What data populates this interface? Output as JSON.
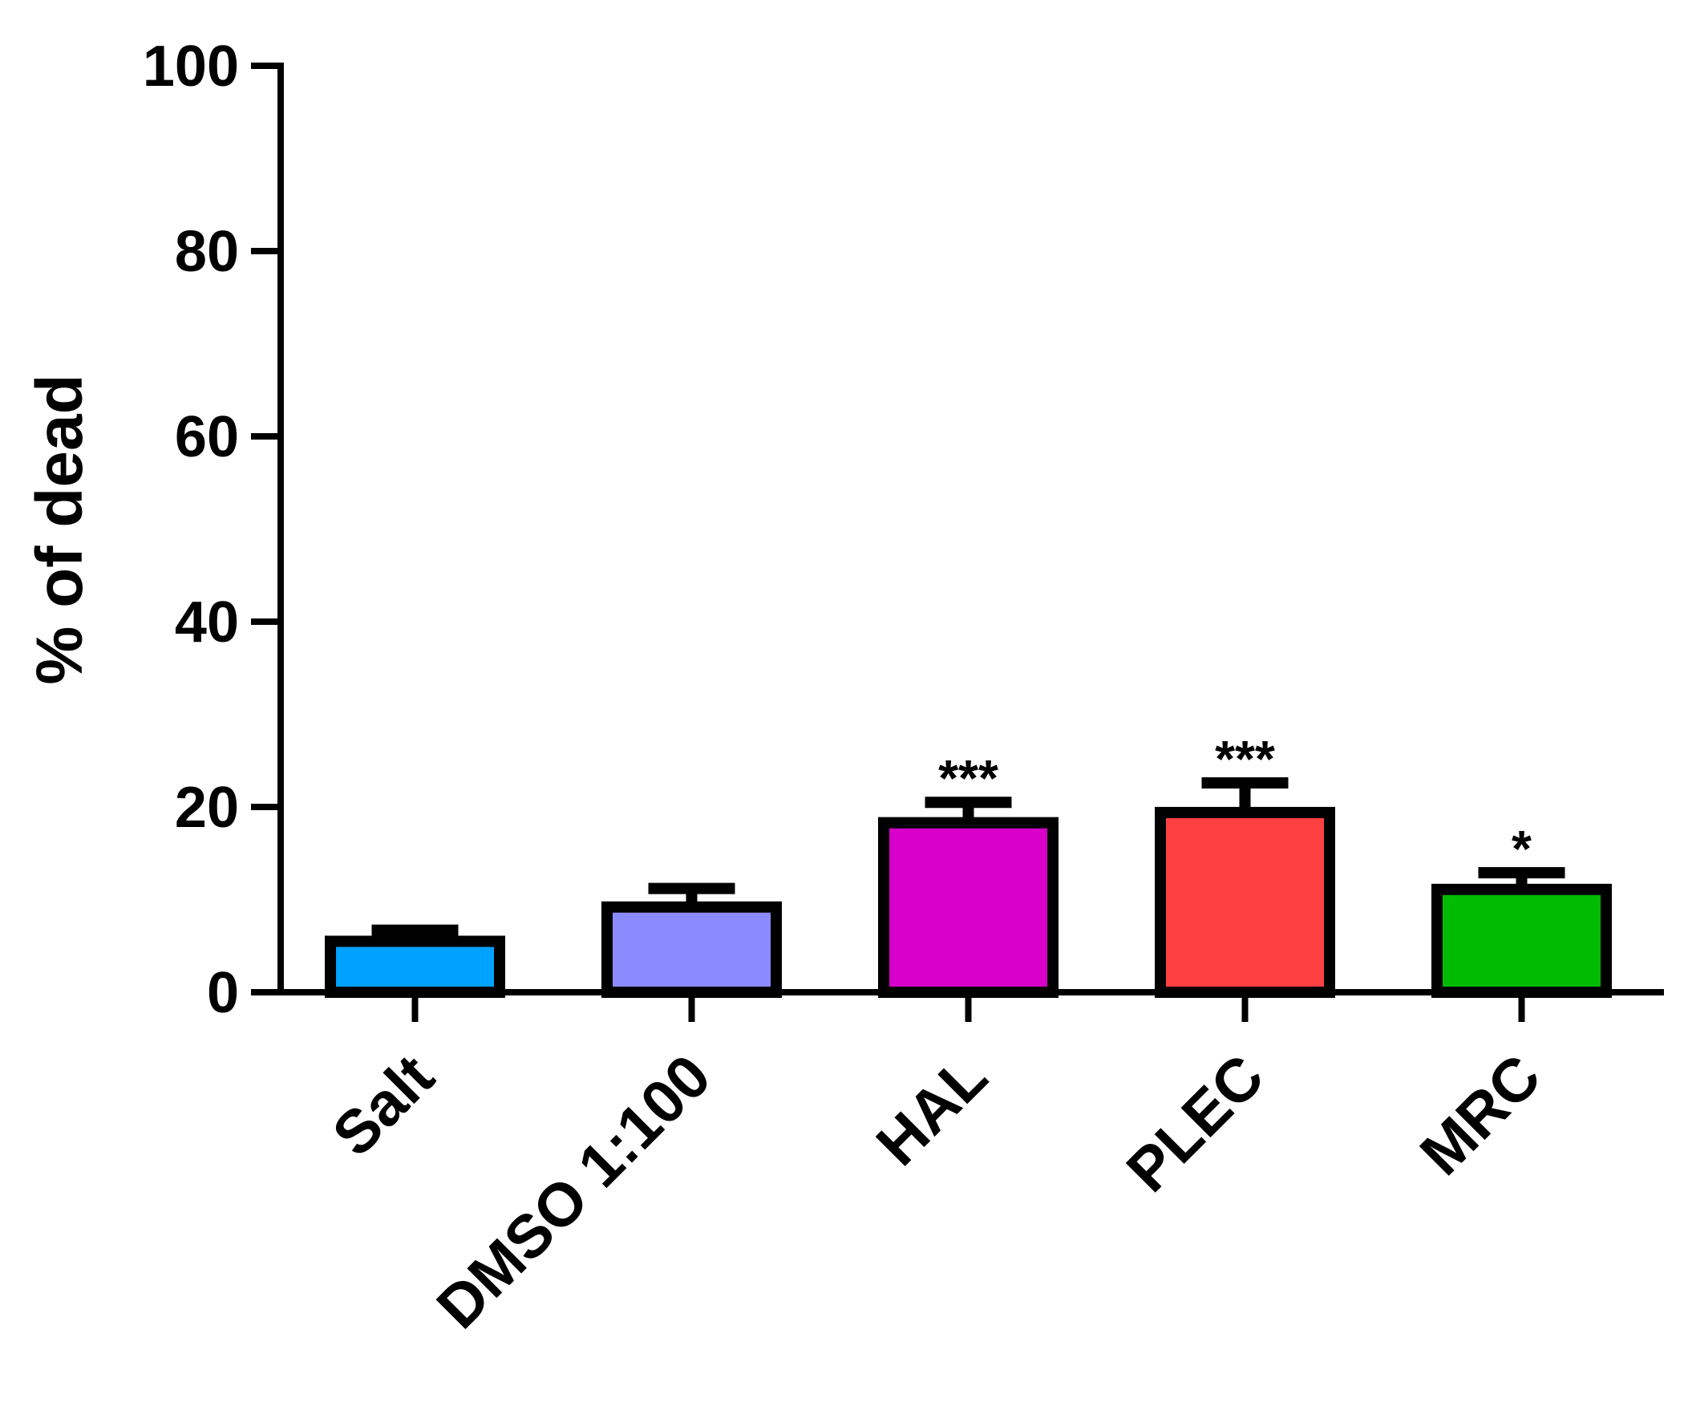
{
  "chart_data": {
    "type": "bar",
    "categories": [
      "Salt",
      "DMSO 1:100",
      "HAL",
      "PLEC",
      "MRC"
    ],
    "values": [
      5.5,
      9.2,
      18.3,
      19.4,
      11.1
    ],
    "errors": [
      1.2,
      2.0,
      2.2,
      3.2,
      1.8
    ],
    "significance": [
      "",
      "",
      "***",
      "***",
      "*"
    ],
    "colors": [
      "#00a2ff",
      "#8b8bff",
      "#d600c8",
      "#ff4040",
      "#00bb00"
    ],
    "ylabel": "% of dead",
    "xlabel": "",
    "title": "",
    "ylim": [
      0,
      100
    ],
    "yticks": [
      0,
      20,
      40,
      60,
      80,
      100
    ],
    "grid": false,
    "legend": "none"
  }
}
